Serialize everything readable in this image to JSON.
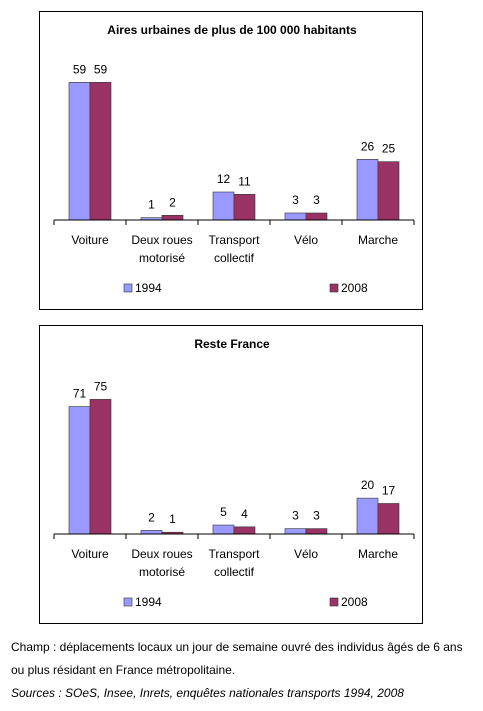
{
  "chart_data": [
    {
      "type": "bar",
      "title": "Aires urbaines de plus de 100 000 habitants",
      "categories": [
        [
          "Voiture"
        ],
        [
          "Deux roues",
          "motorisé"
        ],
        [
          "Transport",
          "collectif"
        ],
        [
          "Vélo"
        ],
        [
          "Marche"
        ]
      ],
      "series": [
        {
          "name": "1994",
          "values": [
            59,
            1,
            12,
            3,
            26
          ],
          "color": "#9999ff"
        },
        {
          "name": "2008",
          "values": [
            59,
            2,
            11,
            3,
            25
          ],
          "color": "#993366"
        }
      ],
      "ylim": [
        0,
        60
      ],
      "grid": false,
      "legend": "bottom"
    },
    {
      "type": "bar",
      "title": "Reste France",
      "categories": [
        [
          "Voiture"
        ],
        [
          "Deux roues",
          "motorisé"
        ],
        [
          "Transport",
          "collectif"
        ],
        [
          "Vélo"
        ],
        [
          "Marche"
        ]
      ],
      "series": [
        {
          "name": "1994",
          "values": [
            71,
            2,
            5,
            3,
            20
          ],
          "color": "#9999ff"
        },
        {
          "name": "2008",
          "values": [
            75,
            1,
            4,
            3,
            17
          ],
          "color": "#993366"
        }
      ],
      "ylim": [
        0,
        78
      ],
      "grid": false,
      "legend": "bottom"
    }
  ],
  "notes": {
    "champ": "Champ : déplacements locaux un jour de semaine ouvré des individus âgés de 6 ans ou plus résidant en France métropolitaine.",
    "sources": "Sources : SOeS, Insee, Inrets, enquêtes nationales transports 1994, 2008"
  }
}
